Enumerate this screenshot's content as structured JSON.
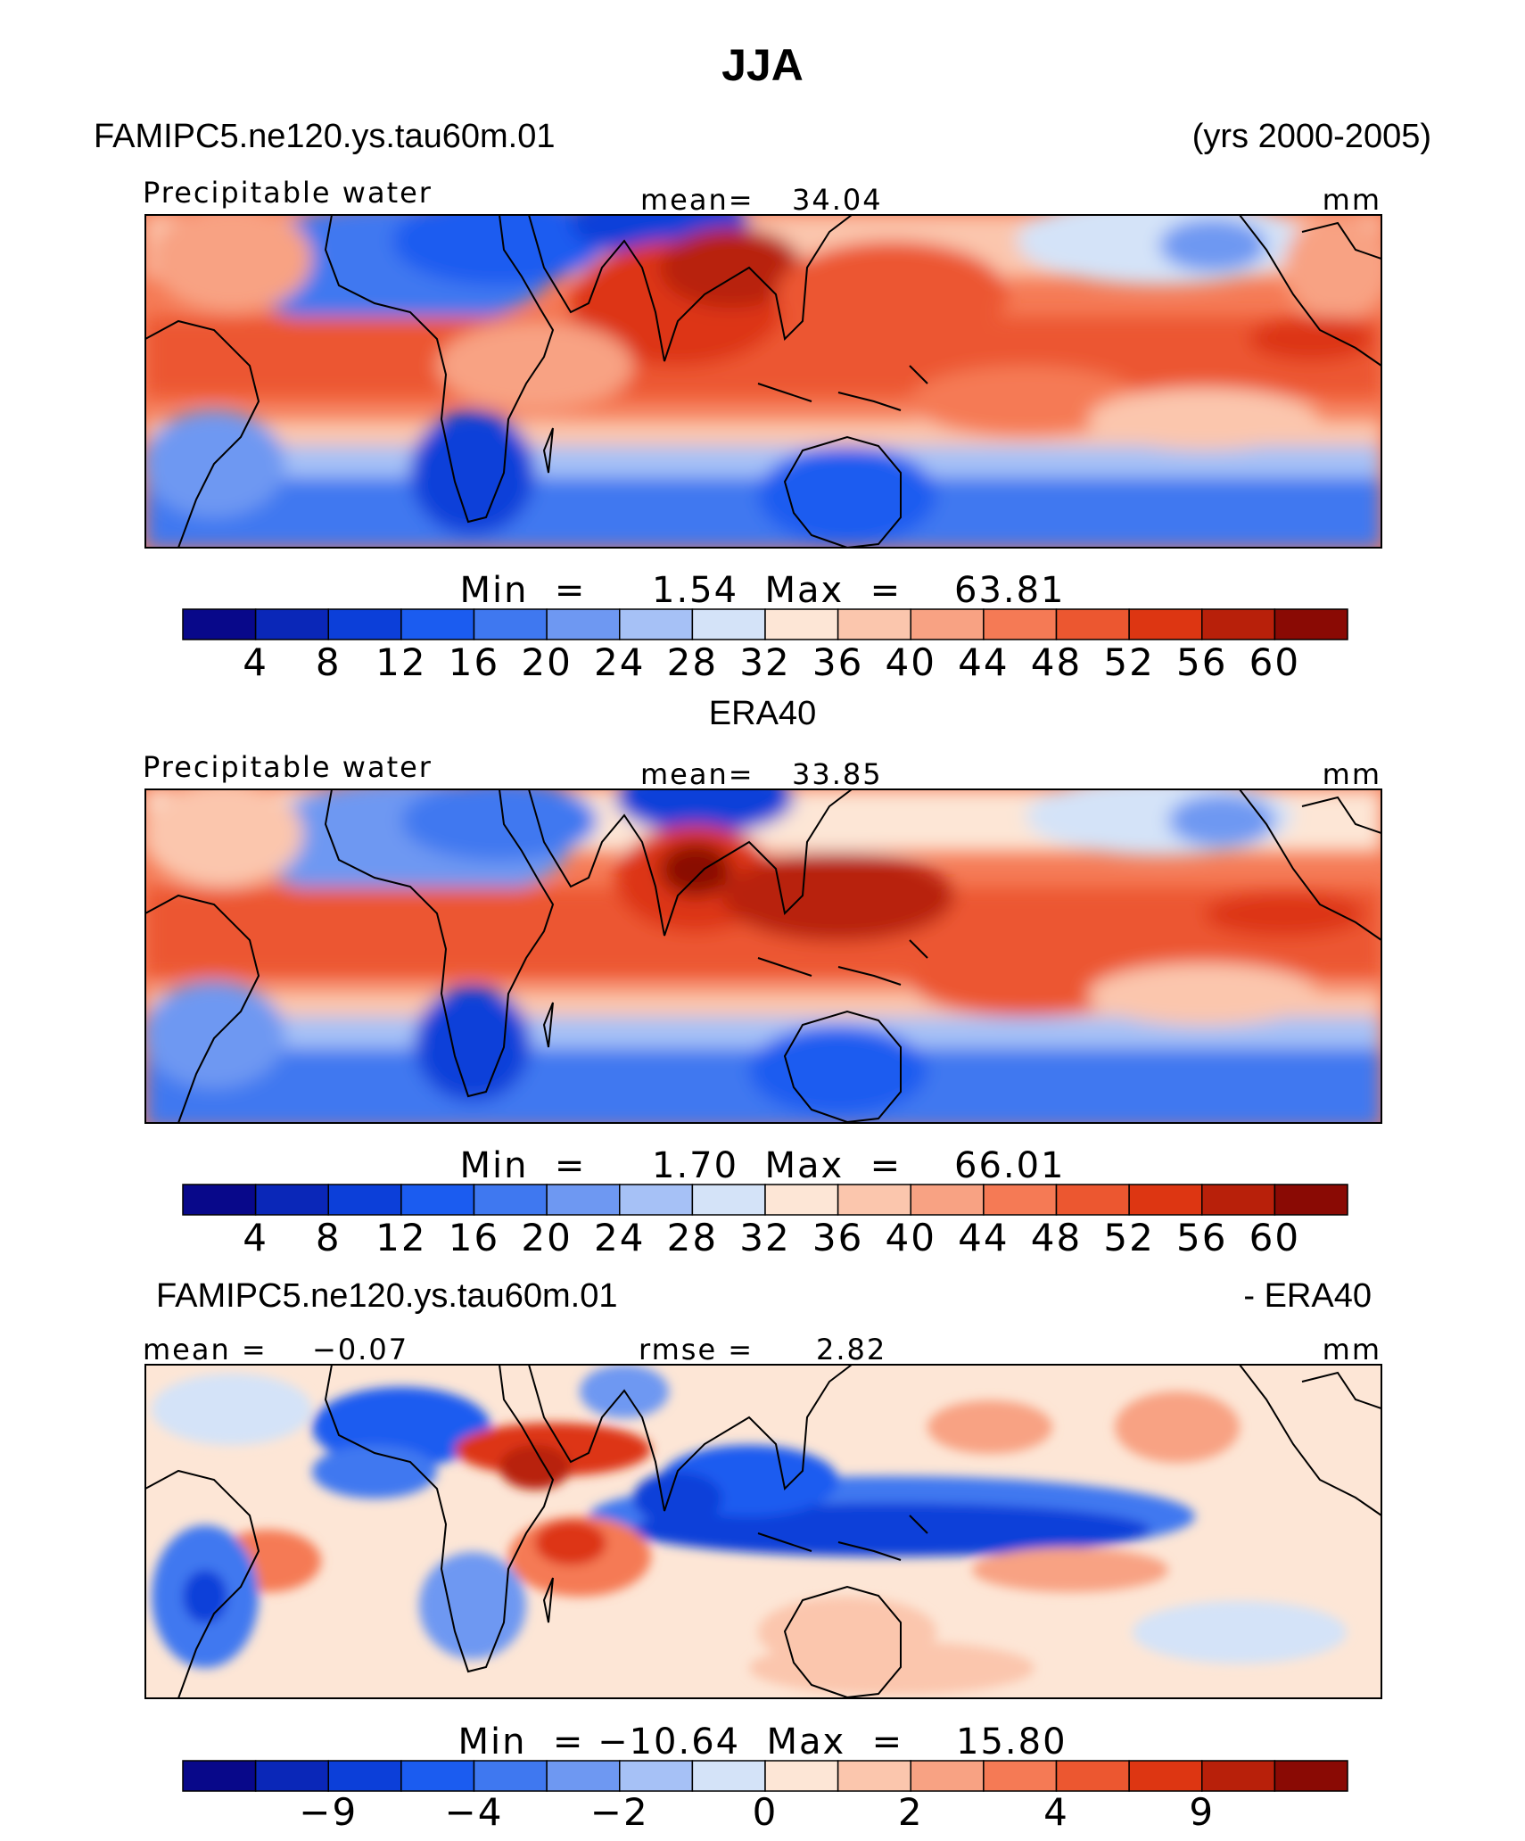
{
  "title": "JJA",
  "panels": [
    {
      "case_left": "FAMIPC5.ne120.ys.tau60m.01",
      "case_right": "(yrs 2000-2005)",
      "variable": "Precipitable water",
      "center_label": "mean=",
      "center_value": "34.04",
      "units": "mm",
      "stats": "Min  =     1.54  Max  =    63.81",
      "colorbar_ticks": [
        "4",
        "8",
        "12",
        "16",
        "20",
        "24",
        "28",
        "32",
        "36",
        "40",
        "44",
        "48",
        "52",
        "56",
        "60"
      ]
    },
    {
      "case_center": "ERA40",
      "variable": "Precipitable water",
      "center_label": "mean=",
      "center_value": "33.85",
      "units": "mm",
      "stats": "Min  =     1.70  Max  =    66.01",
      "colorbar_ticks": [
        "4",
        "8",
        "12",
        "16",
        "20",
        "24",
        "28",
        "32",
        "36",
        "40",
        "44",
        "48",
        "52",
        "56",
        "60"
      ]
    },
    {
      "case_left": "FAMIPC5.ne120.ys.tau60m.01",
      "case_right": "- ERA40",
      "left_label": "mean =",
      "left_value": "−0.07",
      "center_label": "rmse =",
      "center_value": "2.82",
      "units": "mm",
      "stats": "Min  = −10.64  Max  =    15.80",
      "colorbar_ticks": [
        "−9",
        "−4",
        "−2",
        "0",
        "2",
        "4",
        "9"
      ]
    }
  ],
  "chart_data": [
    {
      "type": "heatmap",
      "title": "Precipitable water (FAMIPC5.ne120.ys.tau60m.01, JJA, yrs 2000-2005)",
      "units": "mm",
      "mean": 34.04,
      "min": 1.54,
      "max": 63.81,
      "levels": [
        4,
        8,
        12,
        16,
        20,
        24,
        28,
        32,
        36,
        40,
        44,
        48,
        52,
        56,
        60
      ]
    },
    {
      "type": "heatmap",
      "title": "Precipitable water (ERA40, JJA)",
      "units": "mm",
      "mean": 33.85,
      "min": 1.7,
      "max": 66.01,
      "levels": [
        4,
        8,
        12,
        16,
        20,
        24,
        28,
        32,
        36,
        40,
        44,
        48,
        52,
        56,
        60
      ]
    },
    {
      "type": "heatmap",
      "title": "Precipitable water difference (FAMIPC5.ne120.ys.tau60m.01 - ERA40)",
      "units": "mm",
      "mean": -0.07,
      "rmse": 2.82,
      "min": -10.64,
      "max": 15.8,
      "levels": [
        -9,
        -4,
        -2,
        0,
        2,
        4,
        9
      ]
    }
  ],
  "palette": [
    "#08088a",
    "#0a27b8",
    "#0c3fd9",
    "#1b5cf0",
    "#3f78f0",
    "#6e98f2",
    "#a6c1f6",
    "#d4e3f8",
    "#fde6d6",
    "#fbc6ad",
    "#f8a283",
    "#f57a55",
    "#ec5730",
    "#dd3612",
    "#b8200a",
    "#8a0a04"
  ]
}
